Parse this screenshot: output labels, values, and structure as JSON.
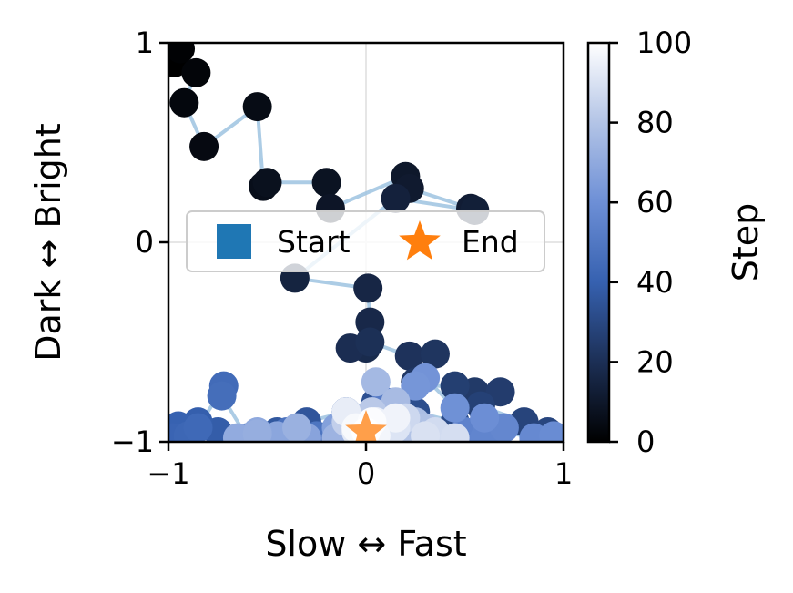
{
  "chart_data": {
    "type": "scatter",
    "title": "",
    "xlabel": "Slow ↔ Fast",
    "ylabel": "Dark ↔ Bright",
    "xlim": [
      -1,
      1
    ],
    "ylim": [
      -1,
      1
    ],
    "xticks": [
      "−1",
      "0",
      "1"
    ],
    "yticks": [
      "−1",
      "0",
      "1"
    ],
    "grid": true,
    "colorbar": {
      "label": "Step",
      "range": [
        0,
        100
      ],
      "ticks": [
        "0",
        "20",
        "40",
        "60",
        "80",
        "100"
      ],
      "colormap": [
        "#000000",
        "#1c2f55",
        "#3661b0",
        "#6d8fd6",
        "#b3c4e6",
        "#ffffff"
      ]
    },
    "legend": {
      "placement": "center",
      "entries": [
        {
          "label": "Start",
          "marker": "square",
          "color": "#1f77b4"
        },
        {
          "label": "End",
          "marker": "star",
          "color": "#ff7f0e"
        }
      ]
    },
    "line_color": "#9ec3e0",
    "end_marker_color": "#ff7f0e",
    "trajectory": {
      "x": [
        -0.97,
        -0.94,
        -0.86,
        -0.92,
        -0.82,
        -0.55,
        -0.52,
        -0.5,
        -0.2,
        -0.18,
        0.2,
        0.22,
        0.53,
        0.55,
        0.15,
        -0.36,
        0.01,
        0.02,
        0.0,
        -0.08,
        0.02,
        0.22,
        0.35,
        0.25,
        0.55,
        0.68,
        0.45,
        0.58,
        0.8,
        0.92,
        0.85,
        0.45,
        0.25,
        0.05,
        -0.1,
        -0.3,
        -0.45,
        -0.6,
        -0.75,
        -0.85,
        -0.95,
        -0.98,
        -0.9,
        -0.85,
        -0.72,
        -0.73,
        -0.6,
        -0.4,
        -0.25,
        -0.1,
        0.0,
        0.1,
        0.2,
        0.35,
        0.5,
        0.6,
        0.7,
        0.85,
        0.95,
        0.6,
        0.45,
        0.3,
        0.25,
        0.15,
        0.05,
        -0.05,
        -0.15,
        -0.3,
        -0.45,
        -0.55,
        -0.65,
        -0.55,
        -0.35,
        -0.15,
        -0.05,
        0.05,
        0.15,
        0.25,
        0.3,
        0.2,
        0.1,
        0.03,
        -0.05,
        -0.1,
        0.0,
        0.1,
        0.2,
        0.35,
        0.45,
        0.3,
        0.15,
        0.05,
        -0.05,
        -0.1,
        0.05,
        0.15,
        0.05,
        -0.05,
        0.03,
        0.0
      ],
      "y": [
        0.9,
        0.97,
        0.85,
        0.7,
        0.48,
        0.68,
        0.28,
        0.3,
        0.3,
        0.17,
        0.33,
        0.27,
        0.17,
        0.16,
        0.22,
        -0.18,
        -0.23,
        -0.4,
        -0.53,
        -0.53,
        -0.5,
        -0.57,
        -0.56,
        -0.7,
        -0.75,
        -0.75,
        -0.72,
        -0.82,
        -0.9,
        -0.95,
        -0.98,
        -0.9,
        -0.85,
        -0.8,
        -0.85,
        -0.9,
        -0.95,
        -0.98,
        -0.95,
        -0.9,
        -0.92,
        -0.98,
        -0.97,
        -0.93,
        -0.72,
        -0.77,
        -0.98,
        -0.95,
        -0.97,
        -0.85,
        -0.93,
        -0.8,
        -0.9,
        -0.98,
        -0.95,
        -0.98,
        -0.93,
        -0.98,
        -0.97,
        -0.88,
        -0.83,
        -0.68,
        -0.72,
        -0.85,
        -0.9,
        -0.95,
        -0.93,
        -0.98,
        -0.97,
        -0.95,
        -0.98,
        -0.96,
        -0.93,
        -0.98,
        -0.88,
        -0.7,
        -0.8,
        -0.9,
        -0.93,
        -0.97,
        -0.92,
        -0.85,
        -0.95,
        -0.9,
        -0.97,
        -0.93,
        -0.88,
        -0.95,
        -0.98,
        -0.97,
        -0.93,
        -0.9,
        -0.95,
        -0.85,
        -0.9,
        -0.88,
        -0.97,
        -0.93,
        -0.9,
        -0.95
      ]
    }
  }
}
